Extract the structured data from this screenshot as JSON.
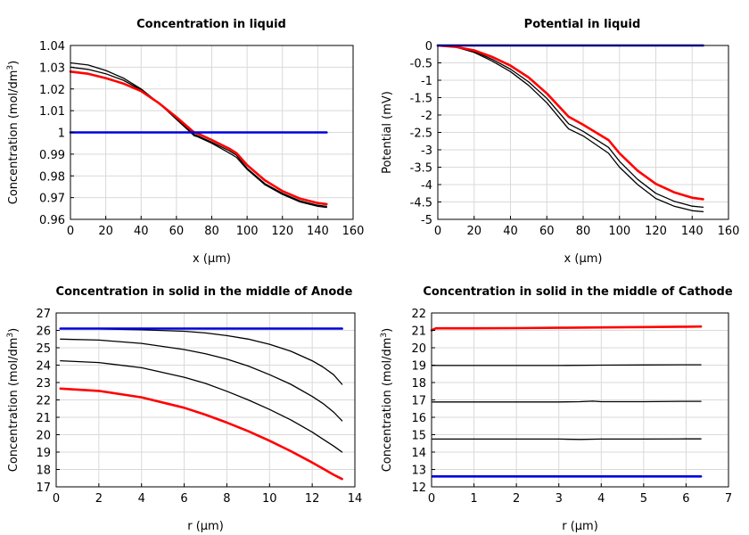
{
  "chart_data": [
    {
      "type": "line",
      "title": "Concentration in liquid",
      "xlabel": "x (µm)",
      "ylabel": "Concentration (mol/dm",
      "ylabel_sup": "3",
      "ylabel_end": ")",
      "xlim": [
        0,
        160
      ],
      "ylim": [
        0.96,
        1.04
      ],
      "xticks": [
        "0",
        "20",
        "40",
        "60",
        "80",
        "100",
        "120",
        "140",
        "160"
      ],
      "yticks": [
        "0.96",
        "0.97",
        "0.98",
        "0.99",
        "1",
        "1.01",
        "1.02",
        "1.03",
        "1.04"
      ],
      "grid": true,
      "series": [
        {
          "color": "#000000",
          "width": 1.3,
          "x": [
            0,
            10,
            20,
            30,
            40,
            50,
            60,
            70,
            72,
            80,
            90,
            94,
            100,
            110,
            120,
            130,
            140,
            145
          ],
          "y": [
            1.032,
            1.031,
            1.0285,
            1.025,
            1.02,
            1.0135,
            1.006,
            0.9985,
            0.998,
            0.995,
            0.9905,
            0.9885,
            0.983,
            0.976,
            0.9715,
            0.968,
            0.966,
            0.9655
          ]
        },
        {
          "color": "#000000",
          "width": 1.3,
          "x": [
            0,
            10,
            20,
            30,
            40,
            50,
            60,
            70,
            72,
            80,
            90,
            94,
            100,
            110,
            120,
            130,
            140,
            145
          ],
          "y": [
            1.03,
            1.029,
            1.027,
            1.024,
            1.0195,
            1.0135,
            1.0065,
            0.999,
            0.9985,
            0.9955,
            0.9915,
            0.9895,
            0.9835,
            0.9765,
            0.972,
            0.9685,
            0.9665,
            0.966
          ]
        },
        {
          "color": "#ff0000",
          "width": 2.6,
          "x": [
            0,
            10,
            20,
            30,
            40,
            50,
            60,
            70,
            72,
            80,
            90,
            94,
            100,
            110,
            120,
            130,
            140,
            145
          ],
          "y": [
            1.028,
            1.027,
            1.025,
            1.0225,
            1.019,
            1.0135,
            1.007,
            1.0,
            0.9995,
            0.9965,
            0.9925,
            0.9905,
            0.985,
            0.978,
            0.973,
            0.9695,
            0.9675,
            0.967
          ]
        },
        {
          "color": "#0000dd",
          "width": 2.6,
          "x": [
            0,
            145
          ],
          "y": [
            1.0,
            1.0
          ]
        }
      ]
    },
    {
      "type": "line",
      "title": "Potential in liquid",
      "xlabel": "x (µm)",
      "ylabel": "Potential (mV)",
      "xlim": [
        0,
        160
      ],
      "ylim": [
        -5,
        0
      ],
      "xticks": [
        "0",
        "20",
        "40",
        "60",
        "80",
        "100",
        "120",
        "140",
        "160"
      ],
      "yticks": [
        "-5",
        "-4.5",
        "-4",
        "-3.5",
        "-3",
        "-2.5",
        "-2",
        "-1.5",
        "-1",
        "-0.5",
        "0"
      ],
      "grid": true,
      "series": [
        {
          "color": "#000000",
          "width": 1.3,
          "x": [
            0,
            10,
            20,
            30,
            40,
            50,
            60,
            72,
            80,
            94,
            100,
            110,
            120,
            130,
            140,
            146
          ],
          "y": [
            0,
            -0.05,
            -0.2,
            -0.45,
            -0.75,
            -1.15,
            -1.65,
            -2.4,
            -2.6,
            -3.1,
            -3.5,
            -4.0,
            -4.4,
            -4.62,
            -4.75,
            -4.78
          ]
        },
        {
          "color": "#000000",
          "width": 1.3,
          "x": [
            0,
            10,
            20,
            30,
            40,
            50,
            60,
            72,
            80,
            94,
            100,
            110,
            120,
            130,
            140,
            146
          ],
          "y": [
            0,
            -0.05,
            -0.17,
            -0.4,
            -0.68,
            -1.05,
            -1.52,
            -2.25,
            -2.47,
            -2.93,
            -3.33,
            -3.85,
            -4.25,
            -4.48,
            -4.62,
            -4.65
          ]
        },
        {
          "color": "#ff0000",
          "width": 2.6,
          "x": [
            0,
            10,
            20,
            30,
            40,
            50,
            60,
            72,
            80,
            94,
            100,
            110,
            120,
            130,
            140,
            146
          ],
          "y": [
            0,
            -0.04,
            -0.14,
            -0.33,
            -0.58,
            -0.92,
            -1.38,
            -2.05,
            -2.28,
            -2.72,
            -3.1,
            -3.6,
            -3.98,
            -4.22,
            -4.38,
            -4.42
          ]
        },
        {
          "color": "#0000dd",
          "width": 2.6,
          "x": [
            0,
            146
          ],
          "y": [
            0,
            0
          ]
        }
      ]
    },
    {
      "type": "line",
      "title": "Concentration in solid in the middle of Anode",
      "xlabel": "r (µm)",
      "ylabel": "Concentration (mol/dm",
      "ylabel_sup": "3",
      "ylabel_end": ")",
      "xlim": [
        0,
        14
      ],
      "ylim": [
        17,
        27
      ],
      "xticks": [
        "0",
        "2",
        "4",
        "6",
        "8",
        "10",
        "12",
        "14"
      ],
      "yticks": [
        "17",
        "18",
        "19",
        "20",
        "21",
        "22",
        "23",
        "24",
        "25",
        "26",
        "27"
      ],
      "grid": true,
      "series": [
        {
          "color": "#000000",
          "width": 1.3,
          "x": [
            0.2,
            2,
            4,
            6,
            7,
            8,
            9,
            10,
            11,
            12,
            12.5,
            13,
            13.4
          ],
          "y": [
            26.1,
            26.08,
            26.03,
            25.95,
            25.85,
            25.7,
            25.5,
            25.2,
            24.8,
            24.25,
            23.9,
            23.45,
            22.9
          ]
        },
        {
          "color": "#000000",
          "width": 1.3,
          "x": [
            0.2,
            2,
            4,
            6,
            7,
            8,
            9,
            10,
            11,
            12,
            12.5,
            13,
            13.4
          ],
          "y": [
            25.5,
            25.44,
            25.25,
            24.9,
            24.65,
            24.35,
            23.95,
            23.45,
            22.9,
            22.2,
            21.8,
            21.3,
            20.8
          ]
        },
        {
          "color": "#000000",
          "width": 1.3,
          "x": [
            0.2,
            2,
            4,
            6,
            7,
            8,
            9,
            10,
            11,
            12,
            12.5,
            13,
            13.4
          ],
          "y": [
            24.25,
            24.15,
            23.85,
            23.3,
            22.95,
            22.5,
            22.0,
            21.45,
            20.85,
            20.15,
            19.75,
            19.35,
            19.0
          ]
        },
        {
          "color": "#ff0000",
          "width": 2.6,
          "x": [
            0.2,
            2,
            4,
            6,
            7,
            8,
            9,
            10,
            11,
            12,
            12.5,
            13,
            13.4
          ],
          "y": [
            22.65,
            22.52,
            22.15,
            21.55,
            21.15,
            20.7,
            20.2,
            19.65,
            19.05,
            18.4,
            18.05,
            17.7,
            17.45
          ]
        },
        {
          "color": "#0000dd",
          "width": 2.6,
          "x": [
            0.2,
            13.4
          ],
          "y": [
            26.1,
            26.1
          ]
        }
      ]
    },
    {
      "type": "line",
      "title": "Concentration in solid in the middle of Cathode",
      "xlabel": "r (µm)",
      "ylabel": "Concentration (mol/dm",
      "ylabel_sup": "3",
      "ylabel_end": ")",
      "xlim": [
        0,
        7
      ],
      "ylim": [
        12,
        22
      ],
      "xticks": [
        "0",
        "1",
        "2",
        "3",
        "4",
        "5",
        "6",
        "7"
      ],
      "yticks": [
        "12",
        "13",
        "14",
        "15",
        "16",
        "17",
        "18",
        "19",
        "20",
        "21",
        "22"
      ],
      "grid": true,
      "series": [
        {
          "color": "#000000",
          "width": 1.3,
          "x": [
            0.02,
            1,
            2,
            3,
            4,
            5,
            6,
            6.35
          ],
          "y": [
            18.98,
            18.98,
            18.98,
            18.98,
            19.0,
            19.01,
            19.02,
            19.02
          ]
        },
        {
          "color": "#000000",
          "width": 1.3,
          "x": [
            0.02,
            1,
            2,
            3,
            3.5,
            3.8,
            4,
            5,
            6,
            6.35
          ],
          "y": [
            16.88,
            16.88,
            16.88,
            16.88,
            16.9,
            16.93,
            16.9,
            16.9,
            16.92,
            16.92
          ]
        },
        {
          "color": "#000000",
          "width": 1.3,
          "x": [
            0.02,
            1,
            2,
            3,
            3.5,
            4,
            5,
            6,
            6.35
          ],
          "y": [
            14.75,
            14.75,
            14.75,
            14.75,
            14.73,
            14.75,
            14.75,
            14.76,
            14.76
          ]
        },
        {
          "color": "#ff0000",
          "width": 2.6,
          "x": [
            0,
            0.1,
            1,
            2,
            3,
            4,
            5,
            6,
            6.35
          ],
          "y": [
            21.0,
            21.12,
            21.12,
            21.13,
            21.15,
            21.17,
            21.19,
            21.21,
            21.22
          ]
        },
        {
          "color": "#0000dd",
          "width": 2.6,
          "x": [
            0.02,
            6.35
          ],
          "y": [
            12.6,
            12.6
          ]
        }
      ]
    }
  ]
}
